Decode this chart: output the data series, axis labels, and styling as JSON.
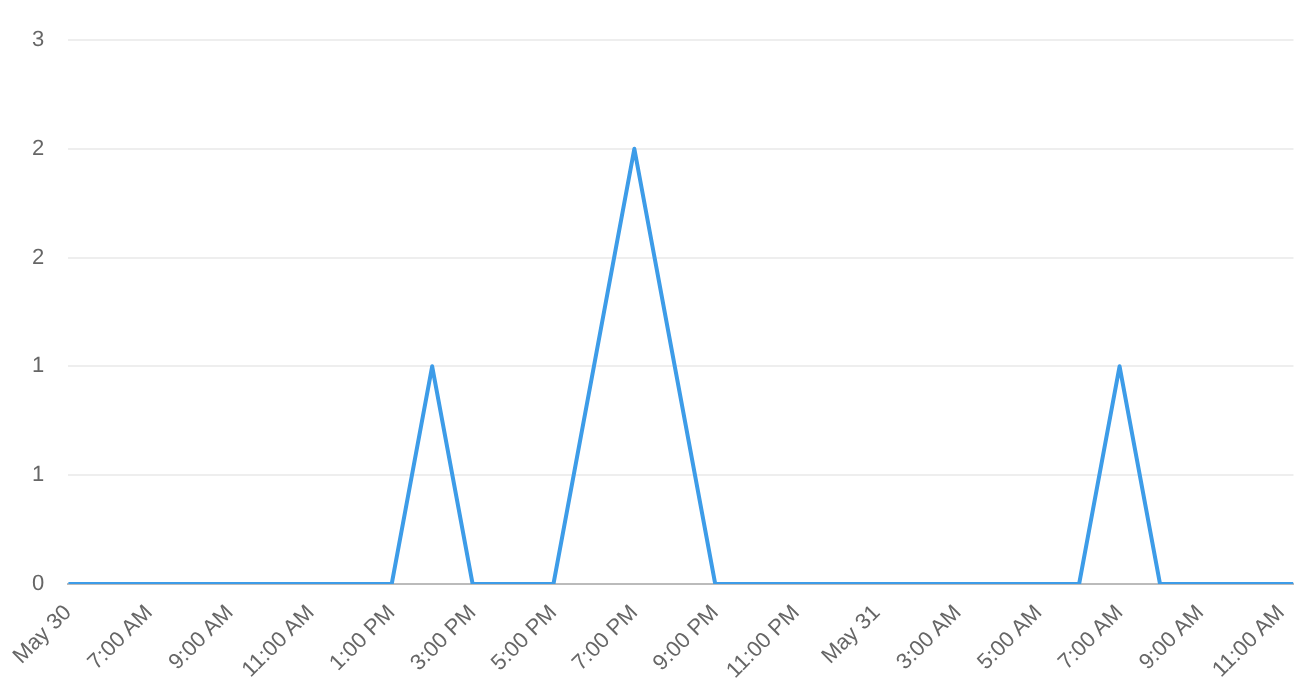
{
  "chart_data": {
    "type": "line",
    "x": [
      "--05-30T05:00",
      "--05-30T06:00",
      "--05-30T07:00",
      "--05-30T08:00",
      "--05-30T09:00",
      "--05-30T10:00",
      "--05-30T11:00",
      "--05-30T12:00",
      "--05-30T13:00",
      "--05-30T14:00",
      "--05-30T15:00",
      "--05-30T16:00",
      "--05-30T17:00",
      "--05-30T18:00",
      "--05-30T19:00",
      "--05-30T20:00",
      "--05-30T21:00",
      "--05-30T22:00",
      "--05-30T23:00",
      "--05-31T00:00",
      "--05-31T01:00",
      "--05-31T02:00",
      "--05-31T03:00",
      "--05-31T04:00",
      "--05-31T05:00",
      "--05-31T06:00",
      "--05-31T07:00",
      "--05-31T08:00",
      "--05-31T09:00",
      "--05-31T10:00",
      "--05-31T11:00",
      "--05-31T11:18"
    ],
    "series": [
      {
        "color": "#3d9ce8",
        "values": [
          0,
          0,
          0,
          0,
          0,
          0,
          0,
          0,
          0,
          1,
          0,
          0,
          0,
          1,
          2,
          1,
          0,
          0,
          0,
          0,
          0,
          0,
          0,
          0,
          0,
          0,
          1,
          0,
          0,
          0,
          0,
          0
        ]
      }
    ],
    "xlim": [
      "--05-30T05:00",
      "--05-31T11:18"
    ],
    "xticks": [
      {
        "value": "--05-30T05:00",
        "label": "May 30"
      },
      {
        "value": "--05-30T07:00",
        "label": "7:00 AM"
      },
      {
        "value": "--05-30T09:00",
        "label": "9:00 AM"
      },
      {
        "value": "--05-30T11:00",
        "label": "11:00 AM"
      },
      {
        "value": "--05-30T13:00",
        "label": "1:00 PM"
      },
      {
        "value": "--05-30T15:00",
        "label": "3:00 PM"
      },
      {
        "value": "--05-30T17:00",
        "label": "5:00 PM"
      },
      {
        "value": "--05-30T19:00",
        "label": "7:00 PM"
      },
      {
        "value": "--05-30T21:00",
        "label": "9:00 PM"
      },
      {
        "value": "--05-30T23:00",
        "label": "11:00 PM"
      },
      {
        "value": "--05-31T01:00",
        "label": "May 31"
      },
      {
        "value": "--05-31T03:00",
        "label": "3:00 AM"
      },
      {
        "value": "--05-31T05:00",
        "label": "5:00 AM"
      },
      {
        "value": "--05-31T07:00",
        "label": "7:00 AM"
      },
      {
        "value": "--05-31T09:00",
        "label": "9:00 AM"
      },
      {
        "value": "--05-31T11:00",
        "label": "11:00 AM"
      }
    ],
    "ylim": [
      0,
      2.5
    ],
    "yticks": [
      0,
      {
        "value": 0.5,
        "label": "1"
      },
      1,
      {
        "value": 1.5,
        "label": "2"
      },
      2,
      {
        "value": 2.5,
        "label": "3"
      }
    ],
    "grid": "y",
    "legend": false,
    "marker": "none",
    "line_style": "solid"
  }
}
